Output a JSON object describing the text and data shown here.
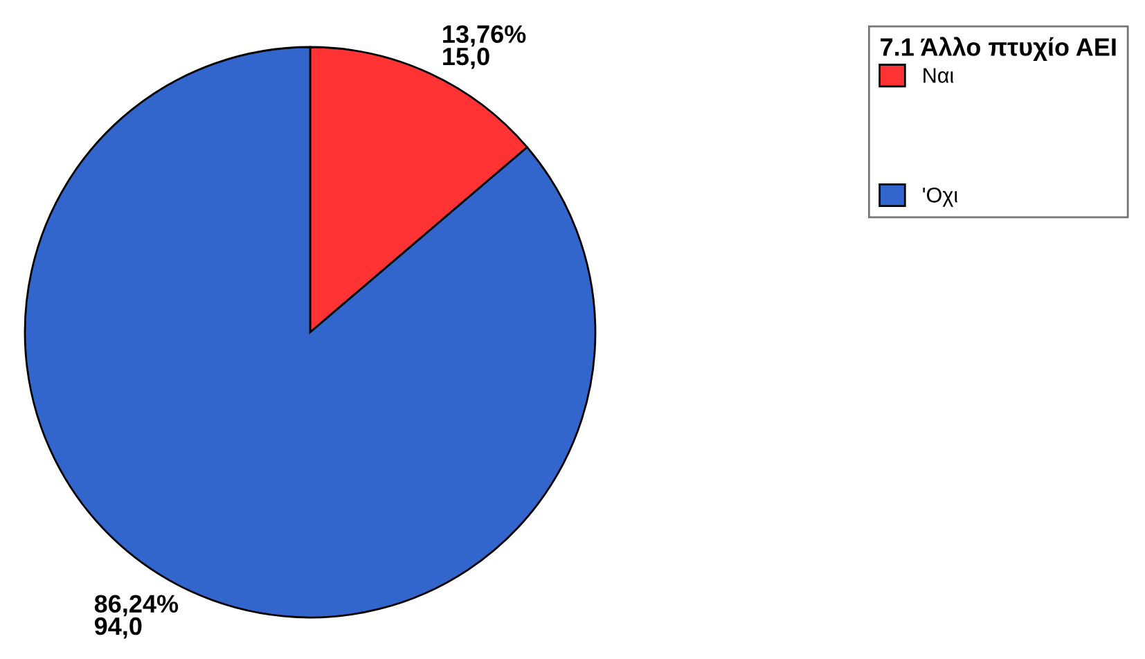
{
  "chart_data": {
    "type": "pie",
    "legend_title": "7.1 Άλλο πτυχίο ΑΕΙ",
    "categories": [
      "Ναι",
      "'Οχι"
    ],
    "values": [
      15.0,
      94.0
    ],
    "colors": [
      "#ff3333",
      "#3366cc"
    ],
    "value_labels": [
      "13,76%\n15,0",
      "86,24%\n94,0"
    ],
    "legend": "top right"
  }
}
